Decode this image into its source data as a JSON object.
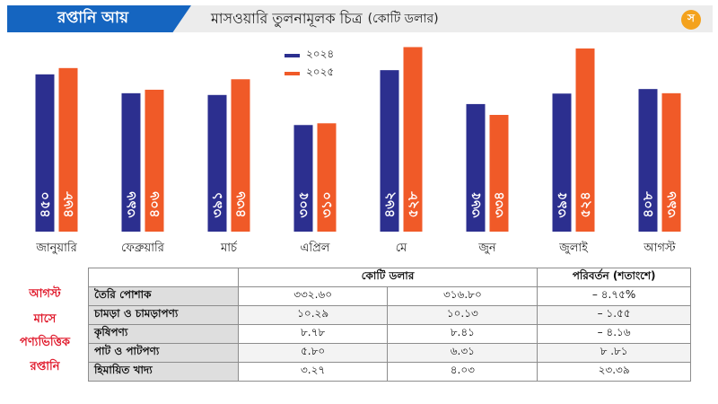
{
  "header": {
    "tag": "রপ্তানি আয়",
    "title": "মাসওয়ারি তুলনামূলক চিত্র",
    "unit": "(কোটি ডলার)",
    "logo": "স"
  },
  "colors": {
    "series_2024": "#2c2f8f",
    "series_2025": "#f05a28",
    "accent": "#1565c0",
    "side_label": "#e0192b"
  },
  "chart_data": {
    "type": "bar",
    "categories": [
      "জানুয়ারি",
      "ফেব্রুয়ারি",
      "মার্চ",
      "এপ্রিল",
      "মে",
      "জুন",
      "জুলাই",
      "আগস্ট"
    ],
    "series": [
      {
        "name": "২০২৪",
        "values": [
          450,
          396,
          391,
          305,
          462,
          365,
          395,
          408
        ],
        "labels": [
          "৪৫০",
          "৩৯৬",
          "৩৯১",
          "৩০৫",
          "৪৬২",
          "৩৬৫",
          "৩৯৫",
          "৪০৮"
        ]
      },
      {
        "name": "২০২৫",
        "values": [
          468,
          406,
          436,
          310,
          528,
          334,
          524,
          396
        ],
        "labels": [
          "৪৬৮",
          "৪০৬",
          "৪৩৬",
          "৩১০",
          "৫২৮",
          "৩৩৪",
          "৫২৪",
          "৩৯৬"
        ]
      }
    ],
    "ylim": [
      0,
      560
    ],
    "grid": false,
    "legend_position": "top"
  },
  "side_labels": [
    "আগস্ট",
    "মাসে",
    "পণ্যভিত্তিক",
    "রপ্তানি"
  ],
  "table": {
    "headers": [
      "",
      "কোটি ডলার",
      "পরিবর্তন (শতাংশে)"
    ],
    "rows": [
      {
        "name": "তৈরি পোশাক",
        "v2024": "৩৩২.৬০",
        "v2025": "৩১৬.৮০",
        "change": "– ৪.৭৫%"
      },
      {
        "name": "চামড়া ও চামড়াপণ্য",
        "v2024": "১০.২৯",
        "v2025": "১০.১৩",
        "change": "– ১.৫৫"
      },
      {
        "name": "কৃষিপণ্য",
        "v2024": "৮.৭৮",
        "v2025": "৮.৪১",
        "change": "– ৪.১৬"
      },
      {
        "name": "পাট ও পাটপণ্য",
        "v2024": "৫.৮০",
        "v2025": "৬.৩১",
        "change": "৮ .৮১"
      },
      {
        "name": "হিমায়িত খাদ্য",
        "v2024": "৩.২৭",
        "v2025": "৪.০৩",
        "change": "২৩.৩৯"
      }
    ]
  }
}
